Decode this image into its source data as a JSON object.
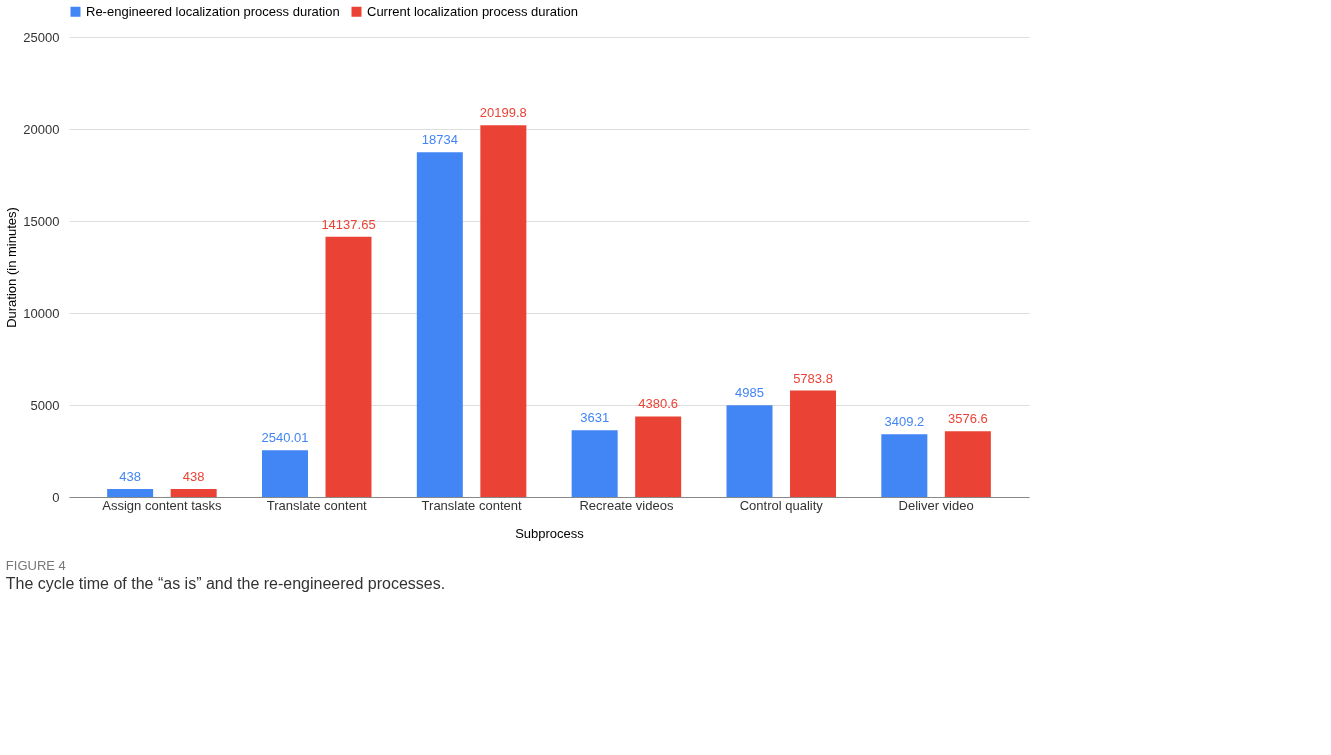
{
  "chart_data": {
    "type": "bar",
    "xlabel": "Subprocess",
    "ylabel": "Duration (in minutes)",
    "categories": [
      "Assign content tasks",
      "Translate content",
      "Translate content",
      "Recreate videos",
      "Control quality",
      "Deliver video"
    ],
    "series": [
      {
        "name": "Re-engineered localization process duration",
        "color": "#4285f4",
        "values": [
          438,
          2540.01,
          18734,
          3631,
          4985,
          3409.2
        ]
      },
      {
        "name": "Current localization process duration",
        "color": "#ea4335",
        "values": [
          438,
          14137.65,
          20199.8,
          4380.6,
          5783.8,
          3576.6
        ]
      }
    ],
    "ylim": [
      0,
      25000
    ],
    "yticks": [
      0,
      5000,
      10000,
      15000,
      20000,
      25000
    ],
    "grid": "y",
    "legend": "top",
    "data_labels": true,
    "annotations": [
      "FIGURE 4",
      "The cycle time of the “as is” and the re-engineered processes."
    ]
  }
}
